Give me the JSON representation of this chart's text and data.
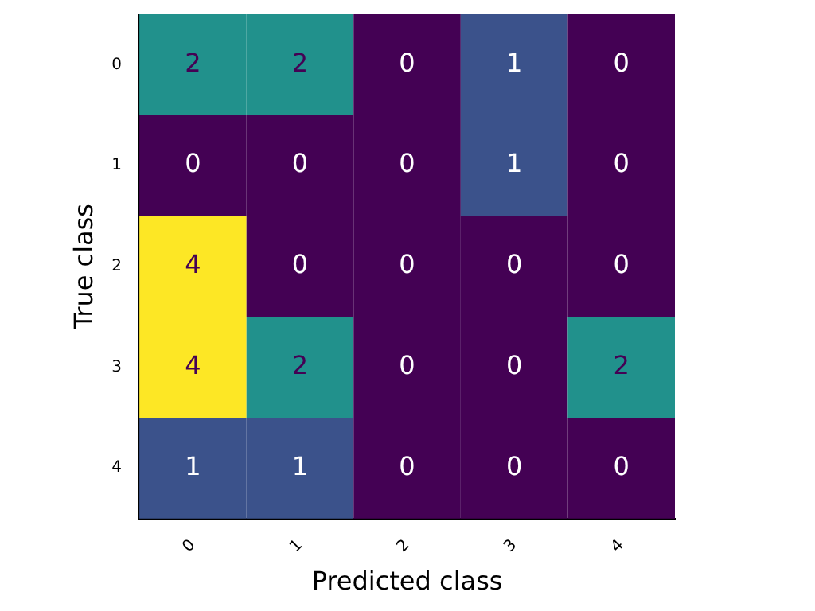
{
  "chart_data": {
    "type": "heatmap",
    "xlabel": "Predicted class",
    "ylabel": "True class",
    "categories": [
      "0",
      "1",
      "2",
      "3",
      "4"
    ],
    "y_categories": [
      "0",
      "1",
      "2",
      "3",
      "4"
    ],
    "cells": [
      [
        2,
        2,
        0,
        1,
        0
      ],
      [
        0,
        0,
        0,
        1,
        0
      ],
      [
        4,
        0,
        0,
        0,
        0
      ],
      [
        4,
        2,
        0,
        0,
        2
      ],
      [
        1,
        1,
        0,
        0,
        0
      ]
    ],
    "data_labels": true,
    "grid": false,
    "legend": false
  }
}
